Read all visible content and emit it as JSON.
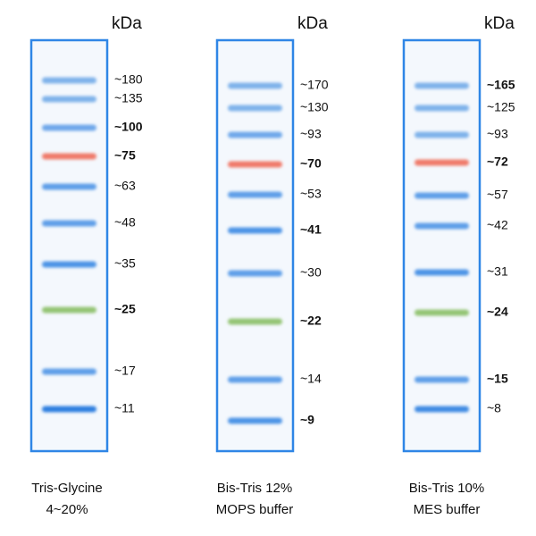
{
  "unit_label": "kDa",
  "lanes": [
    {
      "caption": [
        "Tris-Glycine",
        "4~20%"
      ],
      "bands": [
        {
          "label": "~180",
          "color": "#7fb2ea"
        },
        {
          "label": "~135",
          "color": "#7fb2ea"
        },
        {
          "label": "~100",
          "color": "#6fa8ea"
        },
        {
          "label": "~75",
          "color": "#f07a6a"
        },
        {
          "label": "~63",
          "color": "#5f9fe8"
        },
        {
          "label": "~48",
          "color": "#5f9fe8"
        },
        {
          "label": "~35",
          "color": "#4d94e6"
        },
        {
          "label": "~25",
          "color": "#94c574"
        },
        {
          "label": "~17",
          "color": "#5f9fe8"
        },
        {
          "label": "~11",
          "color": "#2f7fe0"
        }
      ]
    },
    {
      "caption": [
        "Bis-Tris 12%",
        "MOPS buffer"
      ],
      "bands": [
        {
          "label": "~170",
          "color": "#7fb2ea"
        },
        {
          "label": "~130",
          "color": "#7fb2ea"
        },
        {
          "label": "~93",
          "color": "#6fa8ea"
        },
        {
          "label": "~70",
          "color": "#f07a6a"
        },
        {
          "label": "~53",
          "color": "#5f9fe8"
        },
        {
          "label": "~41",
          "color": "#4d94e6"
        },
        {
          "label": "~30",
          "color": "#5f9fe8"
        },
        {
          "label": "~22",
          "color": "#94c574"
        },
        {
          "label": "~14",
          "color": "#5f9fe8"
        },
        {
          "label": "~9",
          "color": "#4d94e6"
        }
      ]
    },
    {
      "caption": [
        "Bis-Tris 10%",
        "MES buffer"
      ],
      "bands": [
        {
          "label": "~165",
          "color": "#7fb2ea"
        },
        {
          "label": "~125",
          "color": "#7fb2ea"
        },
        {
          "label": "~93",
          "color": "#7fb2ea"
        },
        {
          "label": "~72",
          "color": "#f07a6a"
        },
        {
          "label": "~57",
          "color": "#5f9fe8"
        },
        {
          "label": "~42",
          "color": "#5f9fe8"
        },
        {
          "label": "~31",
          "color": "#4d94e6"
        },
        {
          "label": "~24",
          "color": "#94c574"
        },
        {
          "label": "~15",
          "color": "#5f9fe8"
        },
        {
          "label": "~8",
          "color": "#3f8be3"
        }
      ]
    }
  ]
}
